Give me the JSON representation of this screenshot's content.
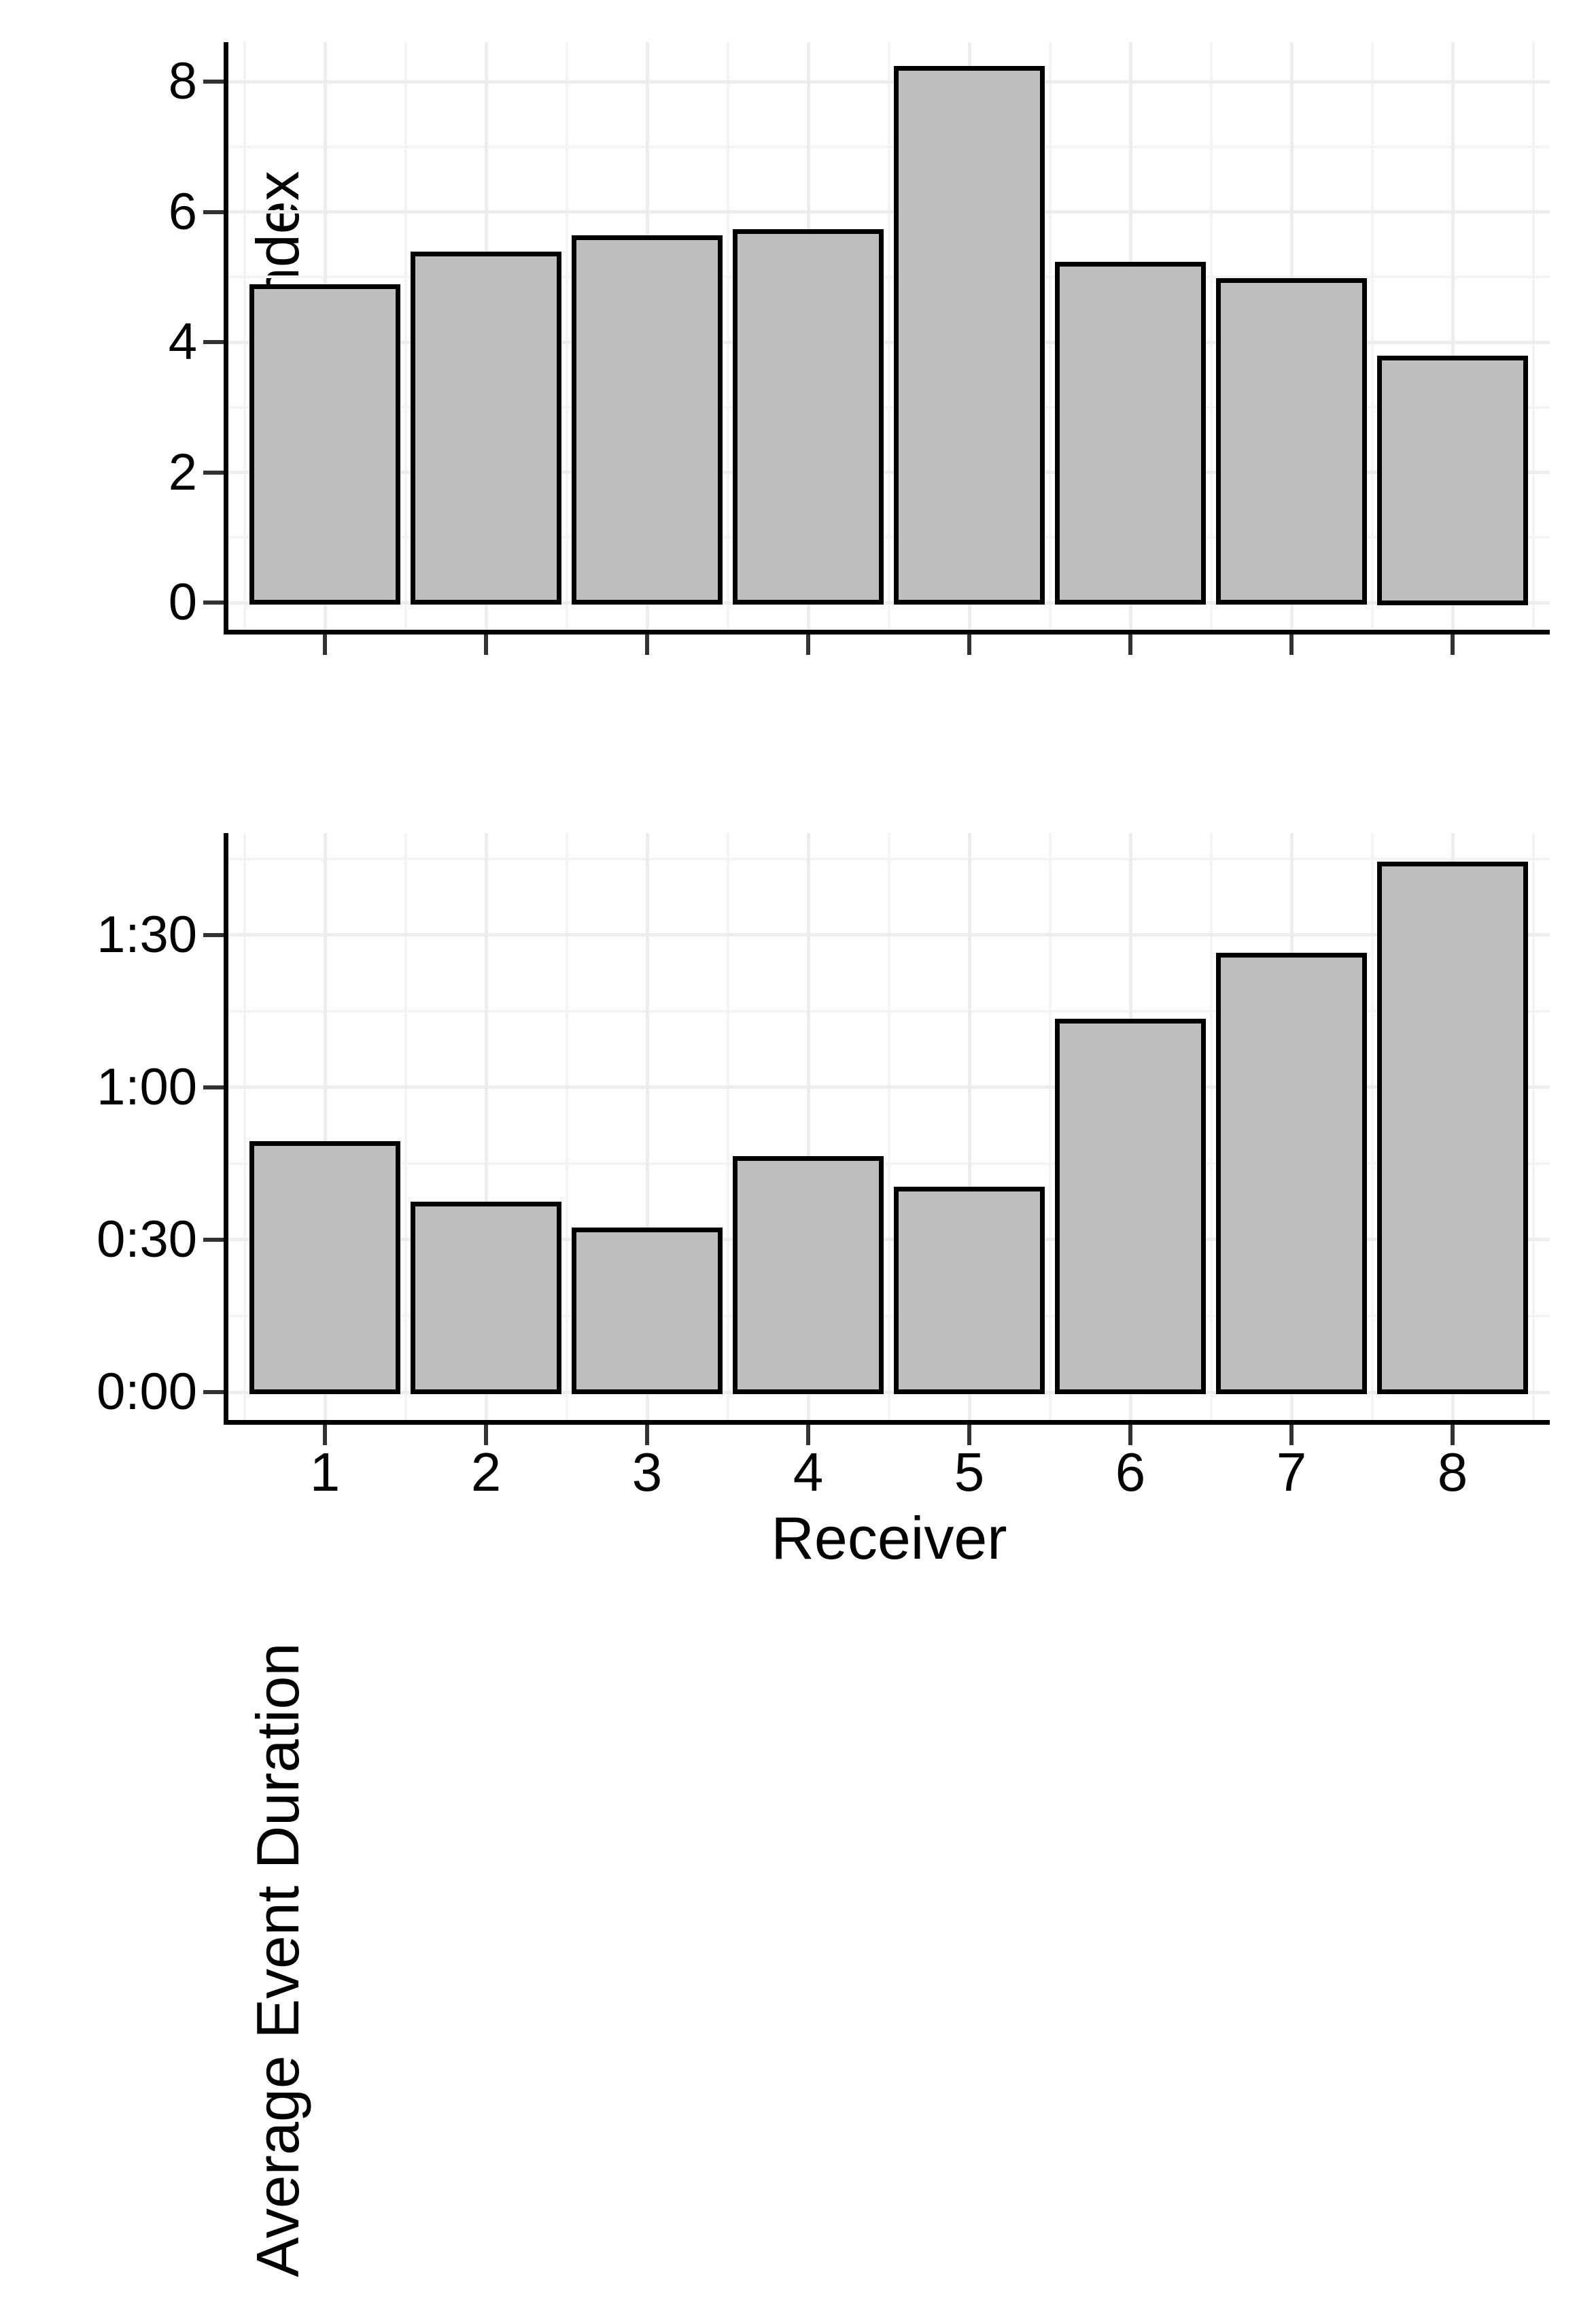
{
  "page": {
    "background": "#ffffff"
  },
  "chart_data": [
    {
      "type": "bar",
      "panel": "top",
      "title": "",
      "xlabel": "",
      "ylabel": "Detection Index",
      "categories": [
        "1",
        "2",
        "3",
        "4",
        "5",
        "6",
        "7",
        "8"
      ],
      "values": [
        4.85,
        5.35,
        5.6,
        5.7,
        8.2,
        5.2,
        4.95,
        3.75
      ],
      "y_ticks": [
        0,
        2,
        4,
        6,
        8
      ],
      "y_tick_labels": [
        "0",
        "2",
        "4",
        "6",
        "8"
      ],
      "y_minor_ticks": [
        1,
        3,
        5,
        7
      ],
      "ylim": [
        0,
        8.6
      ],
      "x_tick_labels_shown": false,
      "grid": "major and minor, light gray",
      "legend": "none",
      "bar_fill": "#bebebe",
      "bar_stroke": "#000000"
    },
    {
      "type": "bar",
      "panel": "bottom",
      "title": "",
      "xlabel": "Receiver",
      "ylabel": "Average Event Duration",
      "categories": [
        "1",
        "2",
        "3",
        "4",
        "5",
        "6",
        "7",
        "8"
      ],
      "values_minutes": [
        49,
        37,
        32,
        46,
        40,
        73,
        86,
        104
      ],
      "values_formatted": [
        "0:49",
        "0:37",
        "0:32",
        "0:46",
        "0:40",
        "1:13",
        "1:26",
        "1:44"
      ],
      "y_ticks_minutes": [
        0,
        30,
        60,
        90
      ],
      "y_tick_labels": [
        "0:00",
        "0:30",
        "1:00",
        "1:30"
      ],
      "y_minor_ticks_minutes": [
        15,
        45,
        75,
        105
      ],
      "ylim_minutes": [
        0,
        110
      ],
      "x_tick_labels_shown": true,
      "grid": "major and minor, light gray",
      "legend": "none",
      "bar_fill": "#bebebe",
      "bar_stroke": "#000000"
    }
  ],
  "colors": {
    "bar_fill": "#bebebe",
    "bar_stroke": "#000000",
    "grid_major": "#ededed",
    "grid_minor": "#f4f4f4",
    "axis_line": "#000000",
    "tick_mark": "#333333",
    "text": "#000000",
    "background": "#ffffff"
  }
}
